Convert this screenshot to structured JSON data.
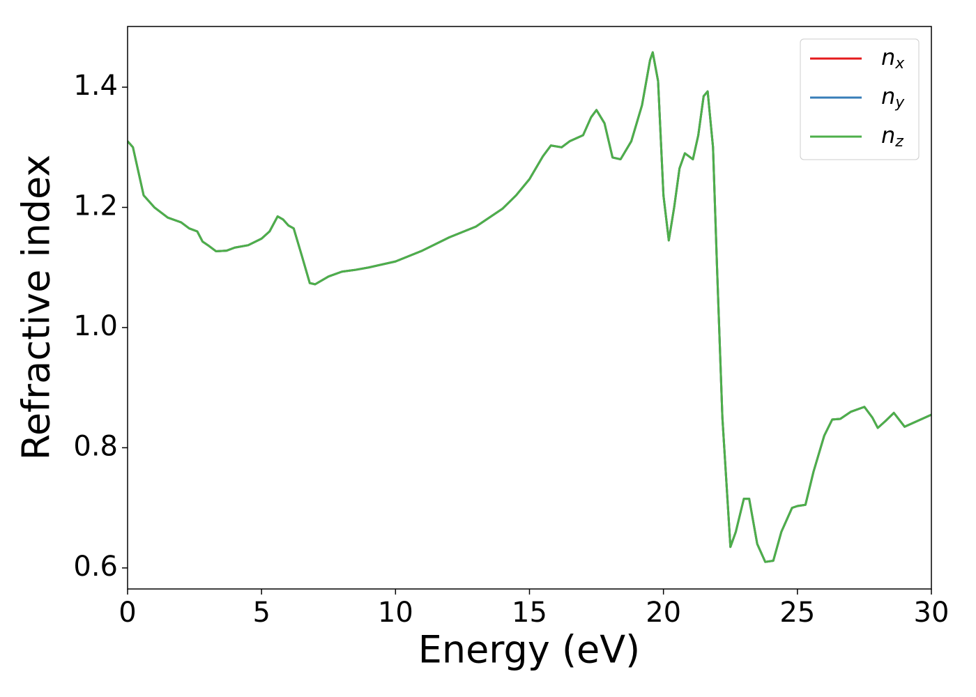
{
  "chart_data": {
    "type": "line",
    "xlabel": "Energy (eV)",
    "ylabel": "Refractive index",
    "x": [
      0,
      0.2,
      0.4,
      0.6,
      1.0,
      1.5,
      2.0,
      2.3,
      2.6,
      2.8,
      3.0,
      3.3,
      3.7,
      4.0,
      4.5,
      5.0,
      5.3,
      5.6,
      5.8,
      6.0,
      6.2,
      6.5,
      6.8,
      7.0,
      7.5,
      8.0,
      8.5,
      9.0,
      10,
      11,
      12,
      13,
      14,
      14.5,
      15,
      15.5,
      15.8,
      16.2,
      16.5,
      17.0,
      17.3,
      17.5,
      17.8,
      18.1,
      18.4,
      18.8,
      19.2,
      19.5,
      19.6,
      19.8,
      20.0,
      20.2,
      20.4,
      20.6,
      20.8,
      21.1,
      21.3,
      21.5,
      21.65,
      21.85,
      22.0,
      22.2,
      22.5,
      22.7,
      23.0,
      23.2,
      23.5,
      23.8,
      24.1,
      24.4,
      24.8,
      25.0,
      25.3,
      25.6,
      26.0,
      26.3,
      26.6,
      27.0,
      27.5,
      27.8,
      28.0,
      28.3,
      28.6,
      29.0,
      29.5,
      30.0
    ],
    "series": [
      {
        "name": "nx",
        "color": "#e41a1c",
        "values": [
          1.31,
          1.3,
          1.26,
          1.22,
          1.2,
          1.183,
          1.175,
          1.165,
          1.16,
          1.143,
          1.137,
          1.127,
          1.128,
          1.133,
          1.137,
          1.148,
          1.16,
          1.185,
          1.18,
          1.17,
          1.165,
          1.12,
          1.074,
          1.072,
          1.085,
          1.093,
          1.096,
          1.1,
          1.11,
          1.128,
          1.15,
          1.168,
          1.198,
          1.22,
          1.247,
          1.285,
          1.303,
          1.3,
          1.31,
          1.32,
          1.35,
          1.362,
          1.34,
          1.283,
          1.28,
          1.31,
          1.37,
          1.445,
          1.458,
          1.41,
          1.22,
          1.145,
          1.2,
          1.265,
          1.29,
          1.28,
          1.32,
          1.385,
          1.393,
          1.3,
          1.1,
          0.85,
          0.635,
          0.66,
          0.715,
          0.715,
          0.64,
          0.61,
          0.612,
          0.66,
          0.7,
          0.703,
          0.705,
          0.76,
          0.82,
          0.847,
          0.848,
          0.86,
          0.868,
          0.85,
          0.833,
          0.845,
          0.858,
          0.835,
          0.845,
          0.855
        ]
      },
      {
        "name": "ny",
        "color": "#377eb8",
        "values": [
          1.31,
          1.3,
          1.26,
          1.22,
          1.2,
          1.183,
          1.175,
          1.165,
          1.16,
          1.143,
          1.137,
          1.127,
          1.128,
          1.133,
          1.137,
          1.148,
          1.16,
          1.185,
          1.18,
          1.17,
          1.165,
          1.12,
          1.074,
          1.072,
          1.085,
          1.093,
          1.096,
          1.1,
          1.11,
          1.128,
          1.15,
          1.168,
          1.198,
          1.22,
          1.247,
          1.285,
          1.303,
          1.3,
          1.31,
          1.32,
          1.35,
          1.362,
          1.34,
          1.283,
          1.28,
          1.31,
          1.37,
          1.445,
          1.458,
          1.41,
          1.22,
          1.145,
          1.2,
          1.265,
          1.29,
          1.28,
          1.32,
          1.385,
          1.393,
          1.3,
          1.1,
          0.85,
          0.635,
          0.66,
          0.715,
          0.715,
          0.64,
          0.61,
          0.612,
          0.66,
          0.7,
          0.703,
          0.705,
          0.76,
          0.82,
          0.847,
          0.848,
          0.86,
          0.868,
          0.85,
          0.833,
          0.845,
          0.858,
          0.835,
          0.845,
          0.855
        ]
      },
      {
        "name": "nz",
        "color": "#4daf4a",
        "values": [
          1.31,
          1.3,
          1.26,
          1.22,
          1.2,
          1.183,
          1.175,
          1.165,
          1.16,
          1.143,
          1.137,
          1.127,
          1.128,
          1.133,
          1.137,
          1.148,
          1.16,
          1.185,
          1.18,
          1.17,
          1.165,
          1.12,
          1.074,
          1.072,
          1.085,
          1.093,
          1.096,
          1.1,
          1.11,
          1.128,
          1.15,
          1.168,
          1.198,
          1.22,
          1.247,
          1.285,
          1.303,
          1.3,
          1.31,
          1.32,
          1.35,
          1.362,
          1.34,
          1.283,
          1.28,
          1.31,
          1.37,
          1.445,
          1.458,
          1.41,
          1.22,
          1.145,
          1.2,
          1.265,
          1.29,
          1.28,
          1.32,
          1.385,
          1.393,
          1.3,
          1.1,
          0.85,
          0.635,
          0.66,
          0.715,
          0.715,
          0.64,
          0.61,
          0.612,
          0.66,
          0.7,
          0.703,
          0.705,
          0.76,
          0.82,
          0.847,
          0.848,
          0.86,
          0.868,
          0.85,
          0.833,
          0.845,
          0.858,
          0.835,
          0.845,
          0.855
        ]
      }
    ],
    "xlim": [
      0,
      30
    ],
    "xticks": [
      0,
      5,
      10,
      15,
      20,
      25,
      30
    ],
    "ylim": [
      0.565,
      1.501
    ],
    "yticks": [
      0.6,
      0.8,
      {
        "value": 1.0,
        "label": "1.0"
      },
      1.2,
      1.4
    ],
    "grid": false,
    "legend": "upper right"
  }
}
